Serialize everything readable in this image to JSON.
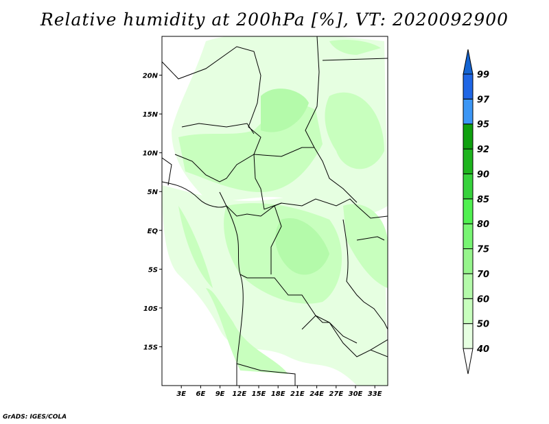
{
  "title": "Relative humidity at 200hPa [%], VT: 2020092900",
  "credit": "GrADS: IGES/COLA",
  "map": {
    "lon_range": [
      0,
      35
    ],
    "lat_range": [
      -20,
      25
    ],
    "lon_ticks": [
      {
        "value": 3,
        "label": "3E"
      },
      {
        "value": 6,
        "label": "6E"
      },
      {
        "value": 9,
        "label": "9E"
      },
      {
        "value": 12,
        "label": "12E"
      },
      {
        "value": 15,
        "label": "15E"
      },
      {
        "value": 18,
        "label": "18E"
      },
      {
        "value": 21,
        "label": "21E"
      },
      {
        "value": 24,
        "label": "24E"
      },
      {
        "value": 27,
        "label": "27E"
      },
      {
        "value": 30,
        "label": "30E"
      },
      {
        "value": 33,
        "label": "33E"
      }
    ],
    "lat_ticks": [
      {
        "value": 20,
        "label": "20N"
      },
      {
        "value": 15,
        "label": "15N"
      },
      {
        "value": 10,
        "label": "10N"
      },
      {
        "value": 5,
        "label": "5N"
      },
      {
        "value": 0,
        "label": "EQ"
      },
      {
        "value": -5,
        "label": "5S"
      },
      {
        "value": -10,
        "label": "10S"
      },
      {
        "value": -15,
        "label": "15S"
      }
    ]
  },
  "colorbar": {
    "levels": [
      "40",
      "50",
      "60",
      "70",
      "75",
      "80",
      "85",
      "90",
      "92",
      "95",
      "97",
      "99"
    ],
    "colors": [
      "#e6ffe1",
      "#c8ffbe",
      "#b4faaa",
      "#96f58c",
      "#78f573",
      "#50f050",
      "#37d23c",
      "#1eb41e",
      "#0fa00f",
      "#3c96f5",
      "#1f66e5"
    ],
    "below_color": "#ffffff",
    "above_color": "#1464d2"
  }
}
